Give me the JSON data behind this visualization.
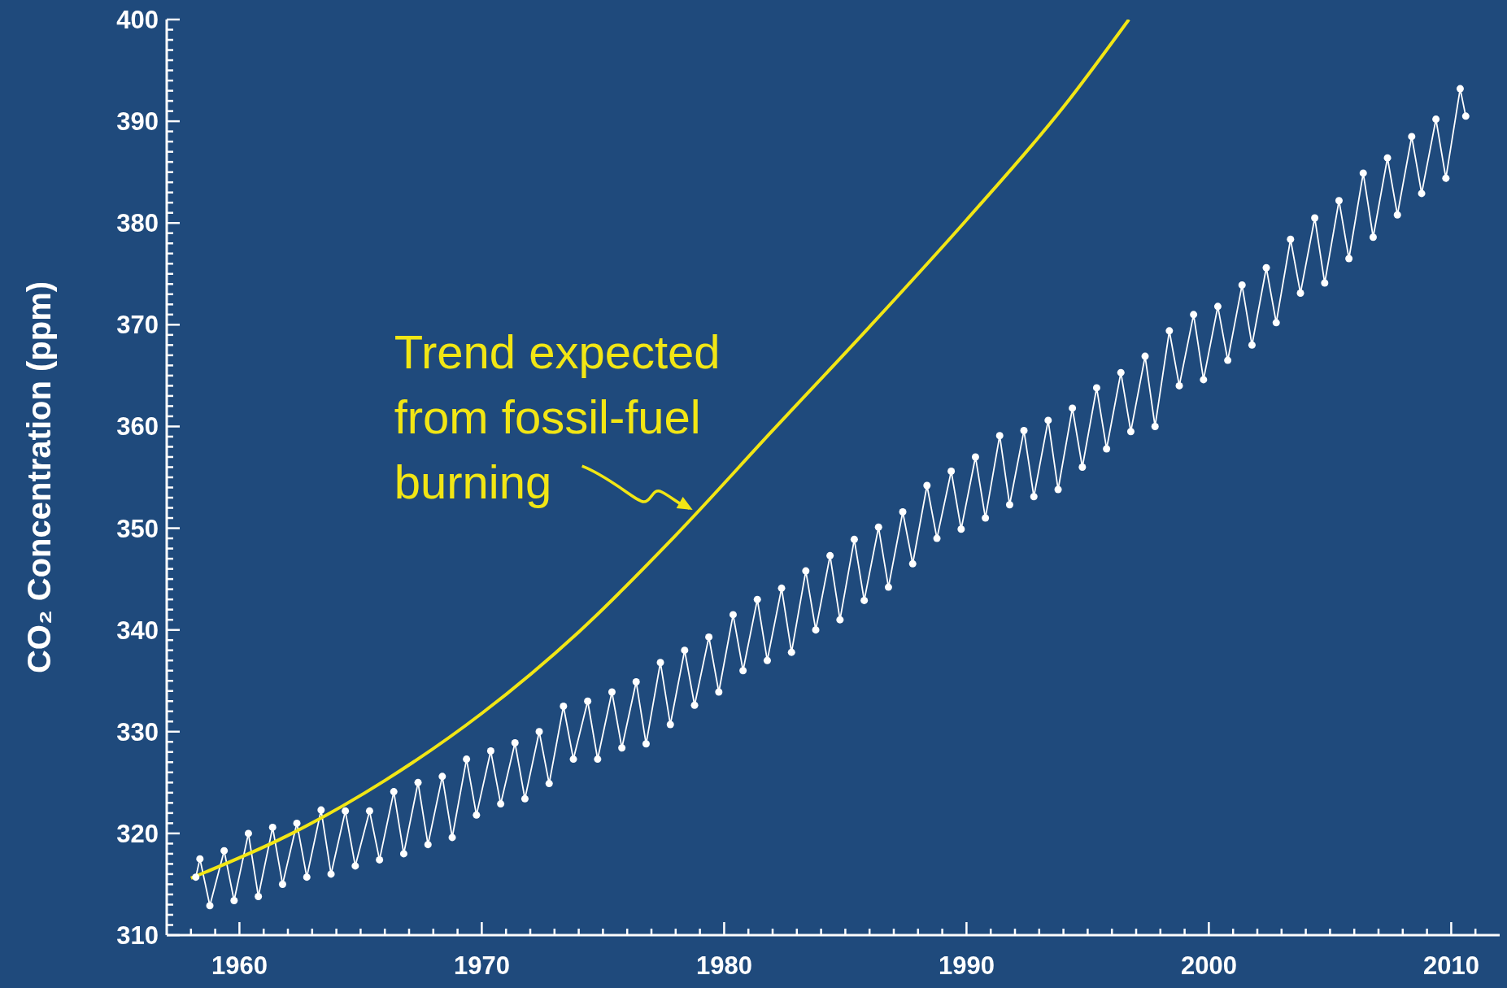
{
  "chart_data": {
    "type": "line",
    "ylabel": "CO₂ Concentration (ppm)",
    "xlim": [
      1957,
      2012
    ],
    "xticks": [
      {
        "value": 1958,
        "label": null
      },
      {
        "value": 1959,
        "label": null
      },
      1960,
      {
        "value": 1961,
        "label": null
      },
      {
        "value": 1962,
        "label": null
      },
      {
        "value": 1963,
        "label": null
      },
      {
        "value": 1964,
        "label": null
      },
      {
        "value": 1965,
        "label": null
      },
      {
        "value": 1966,
        "label": null
      },
      {
        "value": 1967,
        "label": null
      },
      {
        "value": 1968,
        "label": null
      },
      {
        "value": 1969,
        "label": null
      },
      1970,
      {
        "value": 1971,
        "label": null
      },
      {
        "value": 1972,
        "label": null
      },
      {
        "value": 1973,
        "label": null
      },
      {
        "value": 1974,
        "label": null
      },
      {
        "value": 1975,
        "label": null
      },
      {
        "value": 1976,
        "label": null
      },
      {
        "value": 1977,
        "label": null
      },
      {
        "value": 1978,
        "label": null
      },
      {
        "value": 1979,
        "label": null
      },
      1980,
      {
        "value": 1981,
        "label": null
      },
      {
        "value": 1982,
        "label": null
      },
      {
        "value": 1983,
        "label": null
      },
      {
        "value": 1984,
        "label": null
      },
      {
        "value": 1985,
        "label": null
      },
      {
        "value": 1986,
        "label": null
      },
      {
        "value": 1987,
        "label": null
      },
      {
        "value": 1988,
        "label": null
      },
      {
        "value": 1989,
        "label": null
      },
      1990,
      {
        "value": 1991,
        "label": null
      },
      {
        "value": 1992,
        "label": null
      },
      {
        "value": 1993,
        "label": null
      },
      {
        "value": 1994,
        "label": null
      },
      {
        "value": 1995,
        "label": null
      },
      {
        "value": 1996,
        "label": null
      },
      {
        "value": 1997,
        "label": null
      },
      {
        "value": 1998,
        "label": null
      },
      {
        "value": 1999,
        "label": null
      },
      2000,
      {
        "value": 2001,
        "label": null
      },
      {
        "value": 2002,
        "label": null
      },
      {
        "value": 2003,
        "label": null
      },
      {
        "value": 2004,
        "label": null
      },
      {
        "value": 2005,
        "label": null
      },
      {
        "value": 2006,
        "label": null
      },
      {
        "value": 2007,
        "label": null
      },
      {
        "value": 2008,
        "label": null
      },
      {
        "value": 2009,
        "label": null
      },
      2010,
      {
        "value": 2011,
        "label": null
      }
    ],
    "ylim": [
      310,
      400
    ],
    "yticks": [
      310,
      {
        "value": 311,
        "label": null
      },
      {
        "value": 312,
        "label": null
      },
      {
        "value": 313,
        "label": null
      },
      {
        "value": 314,
        "label": null
      },
      {
        "value": 315,
        "label": null
      },
      {
        "value": 316,
        "label": null
      },
      {
        "value": 317,
        "label": null
      },
      {
        "value": 318,
        "label": null
      },
      {
        "value": 319,
        "label": null
      },
      320,
      {
        "value": 321,
        "label": null
      },
      {
        "value": 322,
        "label": null
      },
      {
        "value": 323,
        "label": null
      },
      {
        "value": 324,
        "label": null
      },
      {
        "value": 325,
        "label": null
      },
      {
        "value": 326,
        "label": null
      },
      {
        "value": 327,
        "label": null
      },
      {
        "value": 328,
        "label": null
      },
      {
        "value": 329,
        "label": null
      },
      330,
      {
        "value": 331,
        "label": null
      },
      {
        "value": 332,
        "label": null
      },
      {
        "value": 333,
        "label": null
      },
      {
        "value": 334,
        "label": null
      },
      {
        "value": 335,
        "label": null
      },
      {
        "value": 336,
        "label": null
      },
      {
        "value": 337,
        "label": null
      },
      {
        "value": 338,
        "label": null
      },
      {
        "value": 339,
        "label": null
      },
      340,
      {
        "value": 341,
        "label": null
      },
      {
        "value": 342,
        "label": null
      },
      {
        "value": 343,
        "label": null
      },
      {
        "value": 344,
        "label": null
      },
      {
        "value": 345,
        "label": null
      },
      {
        "value": 346,
        "label": null
      },
      {
        "value": 347,
        "label": null
      },
      {
        "value": 348,
        "label": null
      },
      {
        "value": 349,
        "label": null
      },
      350,
      {
        "value": 351,
        "label": null
      },
      {
        "value": 352,
        "label": null
      },
      {
        "value": 353,
        "label": null
      },
      {
        "value": 354,
        "label": null
      },
      {
        "value": 355,
        "label": null
      },
      {
        "value": 356,
        "label": null
      },
      {
        "value": 357,
        "label": null
      },
      {
        "value": 358,
        "label": null
      },
      {
        "value": 359,
        "label": null
      },
      360,
      {
        "value": 361,
        "label": null
      },
      {
        "value": 362,
        "label": null
      },
      {
        "value": 363,
        "label": null
      },
      {
        "value": 364,
        "label": null
      },
      {
        "value": 365,
        "label": null
      },
      {
        "value": 366,
        "label": null
      },
      {
        "value": 367,
        "label": null
      },
      {
        "value": 368,
        "label": null
      },
      {
        "value": 369,
        "label": null
      },
      370,
      {
        "value": 371,
        "label": null
      },
      {
        "value": 372,
        "label": null
      },
      {
        "value": 373,
        "label": null
      },
      {
        "value": 374,
        "label": null
      },
      {
        "value": 375,
        "label": null
      },
      {
        "value": 376,
        "label": null
      },
      {
        "value": 377,
        "label": null
      },
      {
        "value": 378,
        "label": null
      },
      {
        "value": 379,
        "label": null
      },
      380,
      {
        "value": 381,
        "label": null
      },
      {
        "value": 382,
        "label": null
      },
      {
        "value": 383,
        "label": null
      },
      {
        "value": 384,
        "label": null
      },
      {
        "value": 385,
        "label": null
      },
      {
        "value": 386,
        "label": null
      },
      {
        "value": 387,
        "label": null
      },
      {
        "value": 388,
        "label": null
      },
      {
        "value": 389,
        "label": null
      },
      390,
      {
        "value": 391,
        "label": null
      },
      {
        "value": 392,
        "label": null
      },
      {
        "value": 393,
        "label": null
      },
      {
        "value": 394,
        "label": null
      },
      {
        "value": 395,
        "label": null
      },
      {
        "value": 396,
        "label": null
      },
      {
        "value": 397,
        "label": null
      },
      {
        "value": 398,
        "label": null
      },
      {
        "value": 399,
        "label": null
      },
      400
    ],
    "line_style": "solid",
    "series": [
      {
        "color": "#ffffff",
        "marker": "circle",
        "x": [
          1958.2,
          1958.37,
          1958.78,
          1959.37,
          1959.78,
          1960.37,
          1960.78,
          1961.37,
          1961.78,
          1962.37,
          1962.78,
          1963.37,
          1963.78,
          1964.37,
          1964.78,
          1965.37,
          1965.78,
          1966.37,
          1966.78,
          1967.37,
          1967.78,
          1968.37,
          1968.78,
          1969.37,
          1969.78,
          1970.37,
          1970.78,
          1971.37,
          1971.78,
          1972.37,
          1972.78,
          1973.37,
          1973.78,
          1974.37,
          1974.78,
          1975.37,
          1975.78,
          1976.37,
          1976.78,
          1977.37,
          1977.78,
          1978.37,
          1978.78,
          1979.37,
          1979.78,
          1980.37,
          1980.78,
          1981.37,
          1981.78,
          1982.37,
          1982.78,
          1983.37,
          1983.78,
          1984.37,
          1984.78,
          1985.37,
          1985.78,
          1986.37,
          1986.78,
          1987.37,
          1987.78,
          1988.37,
          1988.78,
          1989.37,
          1989.78,
          1990.37,
          1990.78,
          1991.37,
          1991.78,
          1992.37,
          1992.78,
          1993.37,
          1993.78,
          1994.37,
          1994.78,
          1995.37,
          1995.78,
          1996.37,
          1996.78,
          1997.37,
          1997.78,
          1998.37,
          1998.78,
          1999.37,
          1999.78,
          2000.37,
          2000.78,
          2001.37,
          2001.78,
          2002.37,
          2002.78,
          2003.37,
          2003.78,
          2004.37,
          2004.78,
          2005.37,
          2005.78,
          2006.37,
          2006.78,
          2007.37,
          2007.78,
          2008.37,
          2008.78,
          2009.37,
          2009.78,
          2010.37,
          2010.6
        ],
        "values": [
          315.7,
          317.5,
          312.9,
          318.3,
          313.4,
          320.0,
          313.8,
          320.6,
          315.0,
          321.0,
          315.7,
          322.3,
          316.0,
          322.2,
          316.8,
          322.2,
          317.4,
          324.1,
          318.0,
          325.0,
          318.9,
          325.6,
          319.6,
          327.3,
          321.8,
          328.1,
          322.9,
          328.9,
          323.4,
          330.0,
          324.9,
          332.5,
          327.3,
          333.0,
          327.3,
          333.9,
          328.4,
          334.9,
          328.8,
          336.8,
          330.7,
          338.0,
          332.6,
          339.3,
          333.9,
          341.5,
          336.0,
          343.0,
          337.0,
          344.1,
          337.8,
          345.8,
          340.0,
          347.3,
          341.0,
          348.9,
          342.9,
          350.1,
          344.2,
          351.6,
          346.5,
          354.2,
          349.0,
          355.6,
          349.9,
          357.0,
          351.0,
          359.1,
          352.3,
          359.6,
          353.1,
          360.6,
          353.8,
          361.8,
          356.0,
          363.8,
          357.8,
          365.3,
          359.5,
          366.9,
          360.0,
          369.4,
          364.0,
          371.0,
          364.6,
          371.8,
          366.5,
          373.9,
          368.0,
          375.6,
          370.2,
          378.4,
          373.1,
          380.5,
          374.1,
          382.2,
          376.5,
          384.9,
          378.6,
          386.4,
          380.8,
          388.5,
          382.9,
          390.2,
          384.4,
          393.2,
          390.5
        ]
      },
      {
        "color": "#f2e614",
        "marker": "none",
        "x": [
          1958,
          1962,
          1966,
          1970,
          1974,
          1978,
          1982,
          1986,
          1990,
          1994,
          1996.7
        ],
        "values": [
          315.6,
          319.8,
          325.2,
          331.8,
          339.8,
          349.3,
          359.6,
          369.8,
          380.3,
          391.4,
          400
        ]
      }
    ],
    "annotations": [
      {
        "text": "Trend expected\nfrom fossil-fuel\nburning",
        "x": 1978.7,
        "y": 351.8
      }
    ]
  }
}
